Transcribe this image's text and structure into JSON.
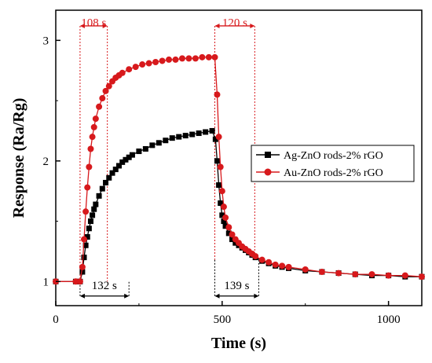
{
  "chart_data": {
    "type": "line",
    "xlabel": "Time (s)",
    "ylabel": "Response (Ra/Rg)",
    "xlim": [
      0,
      1100
    ],
    "ylim": [
      0.8,
      3.25
    ],
    "x_ticks": [
      0,
      500,
      1000
    ],
    "y_ticks": [
      1,
      2,
      3
    ],
    "grid": false,
    "legend_position": "right-middle",
    "series": [
      {
        "name": "Ag-ZnO rods-2% rGO",
        "color": "#000000",
        "marker": "square",
        "x": [
          0,
          60,
          73,
          80,
          85,
          90,
          95,
          100,
          105,
          110,
          115,
          120,
          130,
          140,
          150,
          160,
          170,
          180,
          190,
          200,
          210,
          220,
          230,
          250,
          270,
          290,
          310,
          330,
          350,
          370,
          390,
          410,
          430,
          450,
          470,
          480,
          485,
          490,
          495,
          500,
          505,
          510,
          520,
          530,
          540,
          550,
          560,
          570,
          580,
          590,
          600,
          620,
          640,
          660,
          680,
          700,
          750,
          800,
          850,
          900,
          950,
          1000,
          1050,
          1100
        ],
        "y": [
          1.0,
          1.0,
          1.0,
          1.08,
          1.2,
          1.3,
          1.37,
          1.44,
          1.5,
          1.55,
          1.6,
          1.64,
          1.71,
          1.77,
          1.82,
          1.86,
          1.9,
          1.93,
          1.96,
          1.99,
          2.01,
          2.03,
          2.05,
          2.08,
          2.1,
          2.13,
          2.15,
          2.17,
          2.19,
          2.2,
          2.21,
          2.22,
          2.23,
          2.24,
          2.25,
          2.18,
          2.0,
          1.8,
          1.65,
          1.55,
          1.5,
          1.46,
          1.4,
          1.35,
          1.32,
          1.3,
          1.28,
          1.26,
          1.24,
          1.22,
          1.2,
          1.17,
          1.15,
          1.13,
          1.12,
          1.11,
          1.09,
          1.08,
          1.07,
          1.06,
          1.05,
          1.05,
          1.04,
          1.04
        ]
      },
      {
        "name": "Au-ZnO rods-2% rGO",
        "color": "#d7191c",
        "marker": "circle",
        "x": [
          0,
          60,
          73,
          80,
          85,
          90,
          95,
          100,
          105,
          110,
          115,
          120,
          130,
          140,
          150,
          160,
          170,
          180,
          190,
          200,
          220,
          240,
          260,
          280,
          300,
          320,
          340,
          360,
          380,
          400,
          420,
          440,
          460,
          478,
          485,
          490,
          495,
          500,
          505,
          510,
          520,
          530,
          540,
          550,
          560,
          570,
          580,
          590,
          600,
          620,
          640,
          660,
          680,
          700,
          750,
          800,
          850,
          900,
          950,
          1000,
          1050,
          1100
        ],
        "y": [
          1.0,
          1.0,
          1.0,
          1.12,
          1.35,
          1.58,
          1.78,
          1.95,
          2.1,
          2.2,
          2.28,
          2.35,
          2.45,
          2.52,
          2.58,
          2.62,
          2.66,
          2.69,
          2.71,
          2.73,
          2.76,
          2.78,
          2.8,
          2.81,
          2.82,
          2.83,
          2.84,
          2.84,
          2.85,
          2.85,
          2.85,
          2.86,
          2.86,
          2.86,
          2.55,
          2.2,
          1.95,
          1.75,
          1.62,
          1.53,
          1.45,
          1.39,
          1.35,
          1.32,
          1.29,
          1.27,
          1.25,
          1.23,
          1.21,
          1.18,
          1.16,
          1.14,
          1.13,
          1.12,
          1.1,
          1.08,
          1.07,
          1.06,
          1.06,
          1.05,
          1.05,
          1.04
        ]
      }
    ],
    "annotations": [
      {
        "label": "108 s",
        "color": "#d7191c",
        "x_start": 73,
        "x_end": 155,
        "y": 3.12,
        "label_x": 114,
        "label_y": 3.15,
        "drop_y": 1.0
      },
      {
        "label": "120 s",
        "color": "#d7191c",
        "x_start": 478,
        "x_end": 598,
        "y": 3.12,
        "label_x": 538,
        "label_y": 3.15,
        "drop_y": 1.18
      },
      {
        "label": "132 s",
        "color": "#000000",
        "x_start": 73,
        "x_end": 220,
        "y": 0.88,
        "label_x": 146,
        "label_y": 0.97,
        "rise_y": 1.0
      },
      {
        "label": "139 s",
        "color": "#000000",
        "x_start": 478,
        "x_end": 610,
        "y": 0.88,
        "label_x": 544,
        "label_y": 0.97,
        "rise_y": 1.18
      }
    ]
  }
}
